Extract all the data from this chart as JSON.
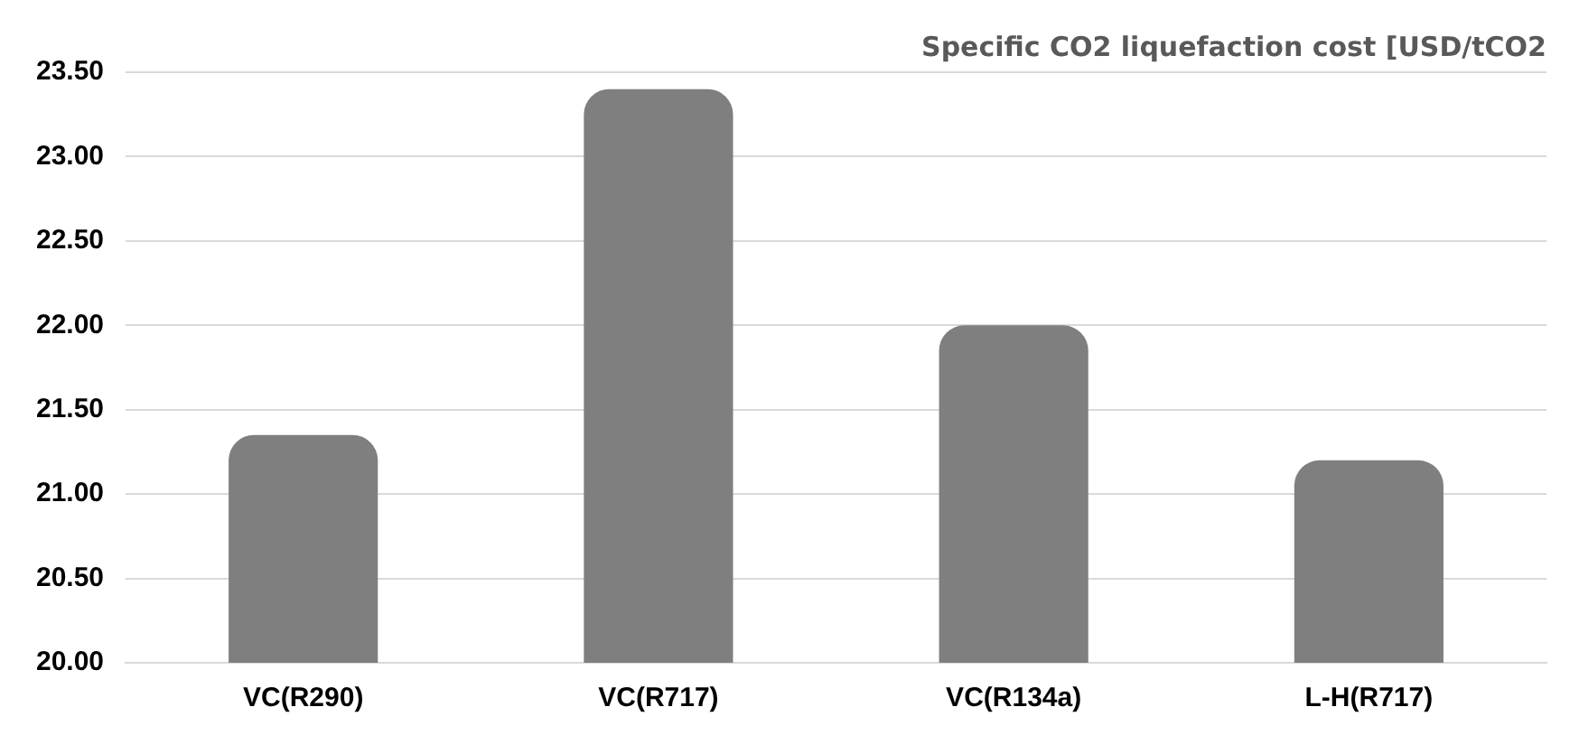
{
  "chart_data": {
    "type": "bar",
    "title": "Specific CO2 liquefaction cost [USD/tCO2",
    "categories": [
      "VC(R290)",
      "VC(R717)",
      "VC(R134a)",
      "L-H(R717)"
    ],
    "values": [
      21.35,
      23.4,
      22.0,
      21.2
    ],
    "color": "#7f7f7f",
    "ylim": [
      20,
      23.5
    ],
    "yticks": [
      {
        "value": 20,
        "label": "20.00"
      },
      {
        "value": 20.5,
        "label": "20.50"
      },
      {
        "value": 21,
        "label": "21.00"
      },
      {
        "value": 21.5,
        "label": "21.50"
      },
      {
        "value": 22,
        "label": "22.00"
      },
      {
        "value": 22.5,
        "label": "22.50"
      },
      {
        "value": 23,
        "label": "23.00"
      },
      {
        "value": 23.5,
        "label": "23.50"
      }
    ],
    "grid": "y",
    "legend": false
  }
}
